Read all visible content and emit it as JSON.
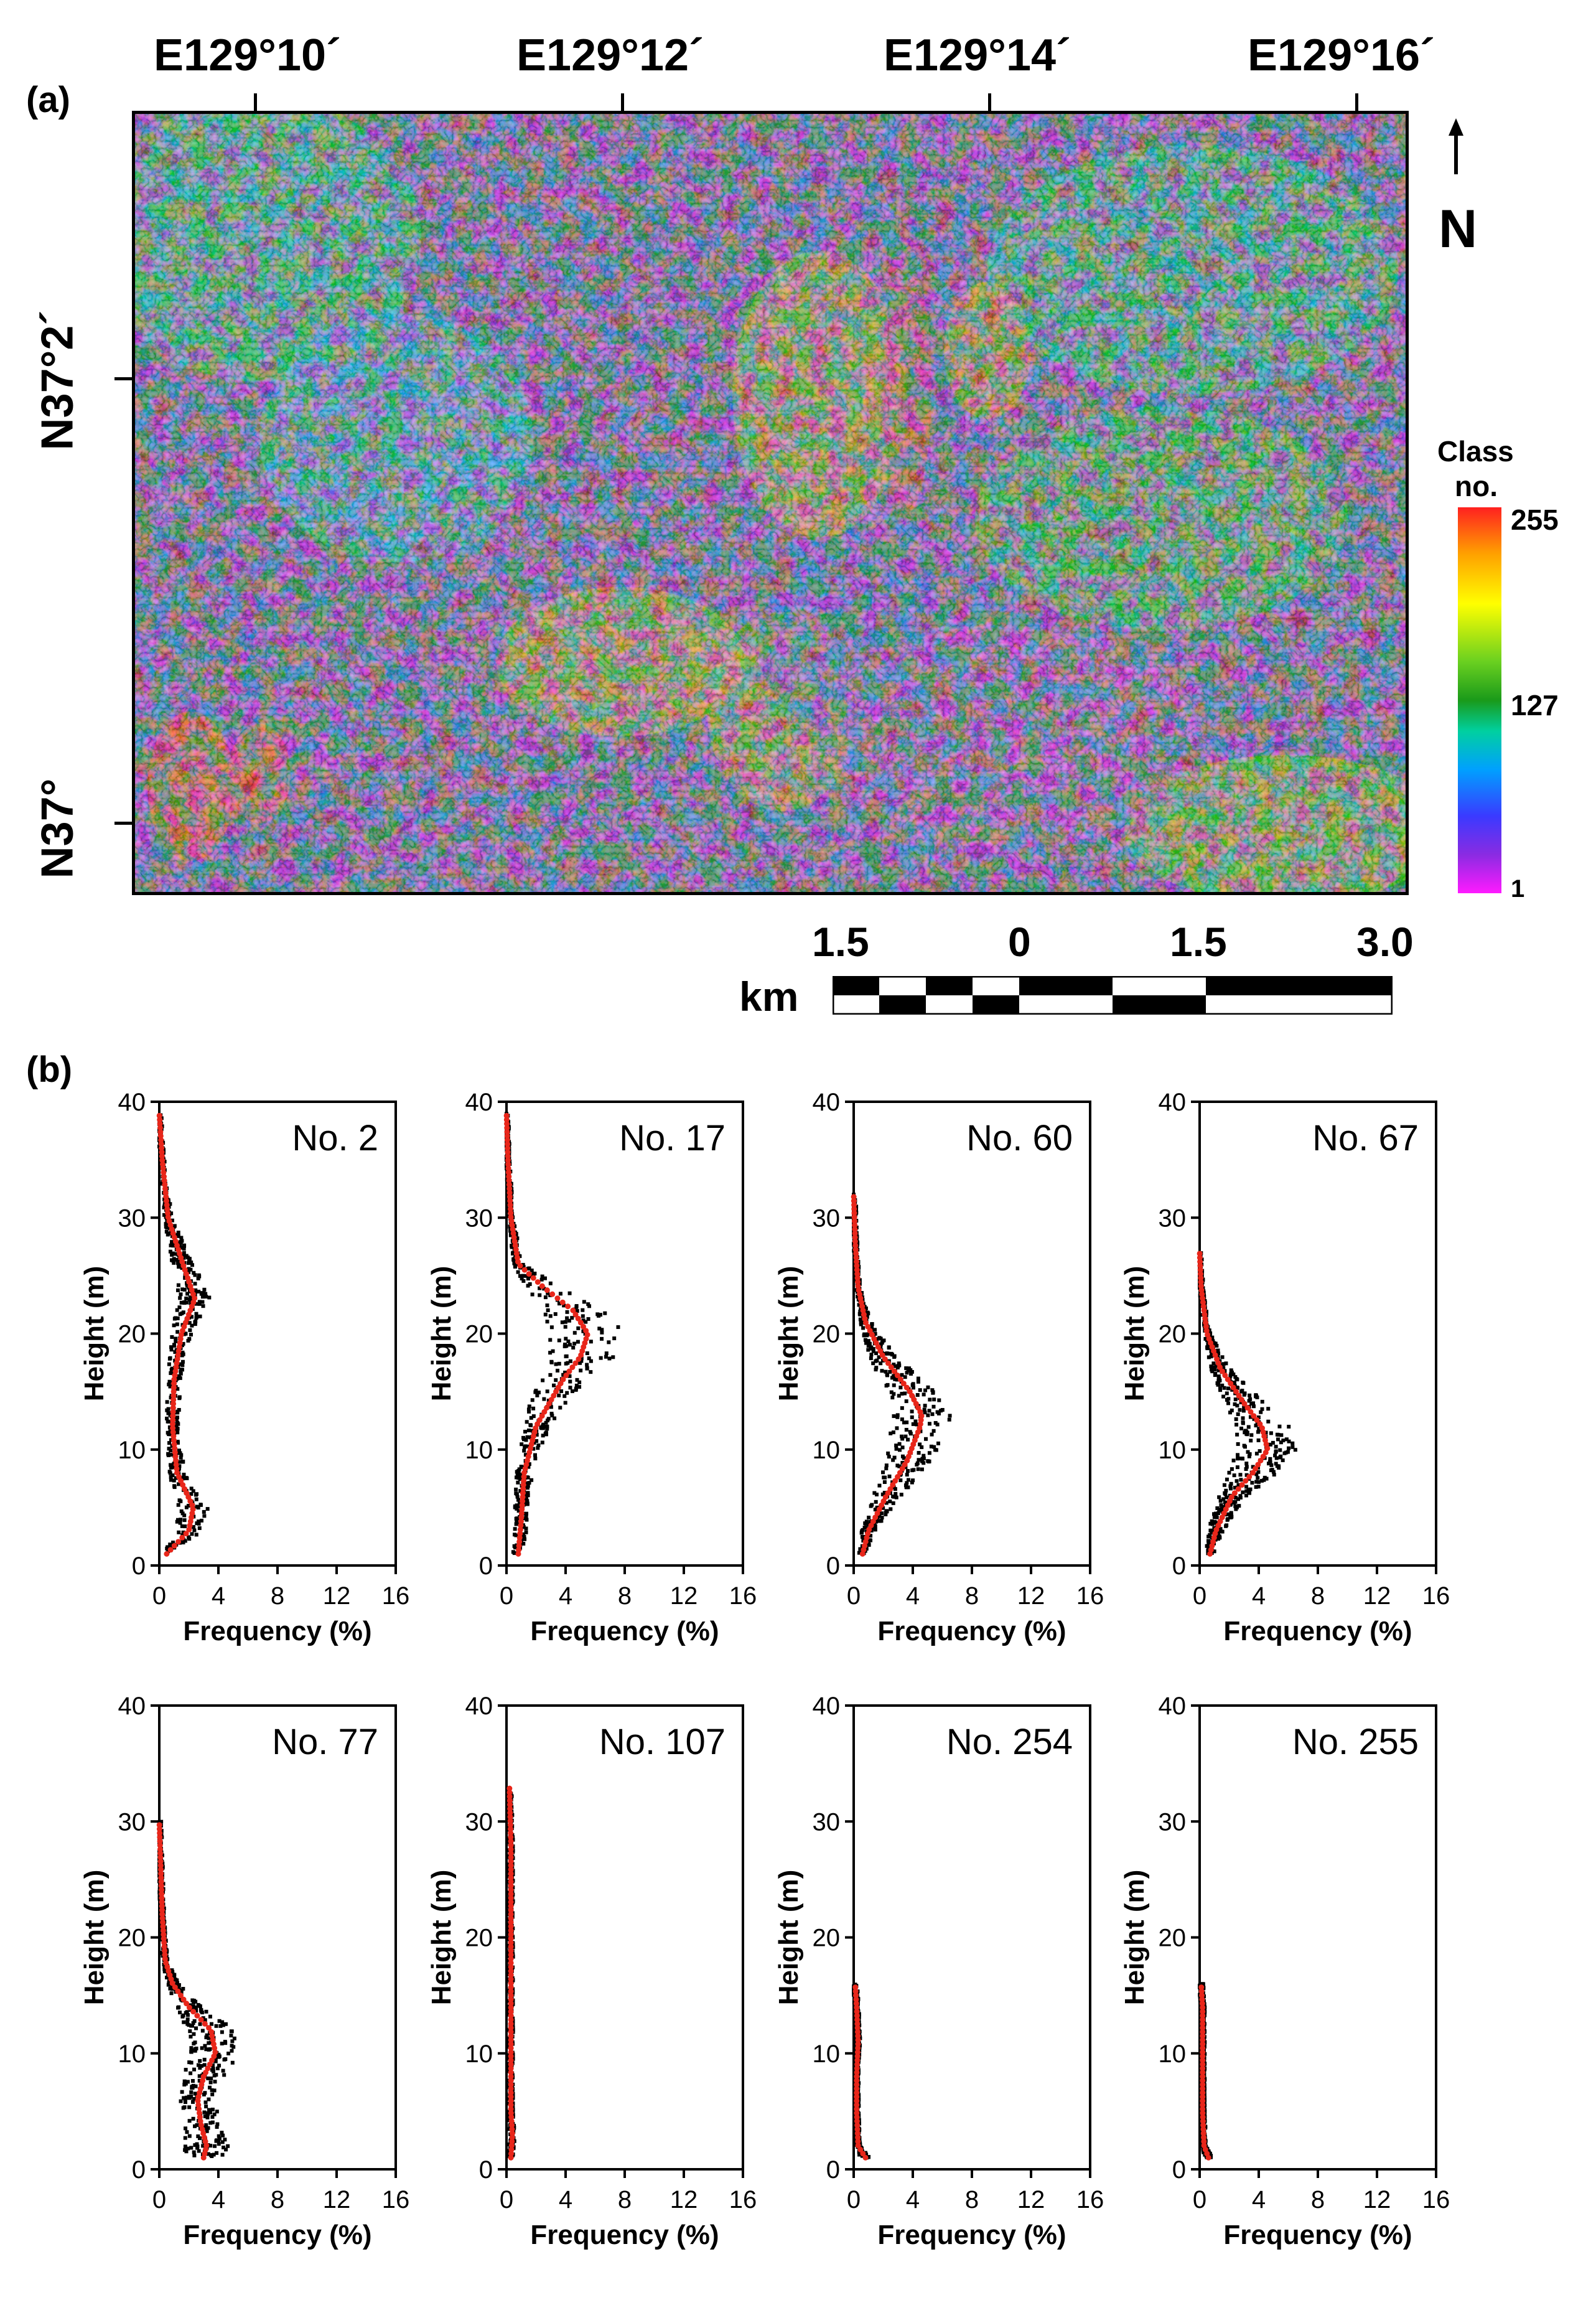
{
  "panel_a": {
    "label": "(a)",
    "lon_labels": [
      "E129°10´",
      "E129°12´",
      "E129°14´",
      "E129°16´"
    ],
    "lat_labels": [
      "N37°2´",
      "N37°"
    ],
    "north_label": "N",
    "colorbar": {
      "title": "Class",
      "subtitle": "no.",
      "ticks": [
        "255",
        "127",
        "1"
      ]
    },
    "scalebar": {
      "unit": "km",
      "ticks": [
        "1.5",
        "0",
        "1.5",
        "3.0"
      ]
    }
  },
  "panel_b": {
    "label": "(b)"
  },
  "chart_data": [
    {
      "type": "scatter",
      "title": "No. 2",
      "xlabel": "Frequency (%)",
      "ylabel": "Height (m)",
      "xlim": [
        0,
        16
      ],
      "ylim": [
        0,
        40
      ],
      "xticks": [
        "0",
        "4",
        "8",
        "12",
        "16"
      ],
      "yticks": [
        "0",
        "10",
        "20",
        "30",
        "40"
      ],
      "curve": {
        "y": [
          1,
          3,
          5,
          8,
          12,
          16,
          20,
          23,
          26,
          30,
          35,
          39
        ],
        "x": [
          0.5,
          2.0,
          2.3,
          1.2,
          0.9,
          1.0,
          1.5,
          2.4,
          1.6,
          0.6,
          0.2,
          0.0
        ]
      }
    },
    {
      "type": "scatter",
      "title": "No. 17",
      "xlabel": "Frequency (%)",
      "ylabel": "Height (m)",
      "xlim": [
        0,
        16
      ],
      "ylim": [
        0,
        40
      ],
      "xticks": [
        "0",
        "4",
        "8",
        "12",
        "16"
      ],
      "yticks": [
        "0",
        "10",
        "20",
        "30",
        "40"
      ],
      "curve": {
        "y": [
          1,
          4,
          8,
          12,
          16,
          18,
          20,
          22,
          24,
          26,
          30,
          35,
          39
        ],
        "x": [
          0.8,
          1.0,
          1.2,
          2.0,
          3.8,
          5.0,
          5.5,
          4.5,
          2.5,
          0.8,
          0.3,
          0.1,
          0.0
        ]
      }
    },
    {
      "type": "scatter",
      "title": "No. 60",
      "xlabel": "Frequency (%)",
      "ylabel": "Height (m)",
      "xlim": [
        0,
        16
      ],
      "ylim": [
        0,
        40
      ],
      "xticks": [
        "0",
        "4",
        "8",
        "12",
        "16"
      ],
      "yticks": [
        "0",
        "10",
        "20",
        "30",
        "40"
      ],
      "curve": {
        "y": [
          1,
          3,
          6,
          9,
          12,
          13,
          15,
          18,
          21,
          24,
          28,
          32
        ],
        "x": [
          0.6,
          1.0,
          2.2,
          3.6,
          4.5,
          4.6,
          3.8,
          2.0,
          0.8,
          0.3,
          0.1,
          0.0
        ]
      }
    },
    {
      "type": "scatter",
      "title": "No. 67",
      "xlabel": "Frequency (%)",
      "ylabel": "Height (m)",
      "xlim": [
        0,
        16
      ],
      "ylim": [
        0,
        40
      ],
      "xticks": [
        "0",
        "4",
        "8",
        "12",
        "16"
      ],
      "yticks": [
        "0",
        "10",
        "20",
        "30",
        "40"
      ],
      "curve": {
        "y": [
          1,
          3,
          6,
          8,
          10,
          12,
          14,
          17,
          20,
          24,
          27
        ],
        "x": [
          0.7,
          1.1,
          2.2,
          3.6,
          4.6,
          4.2,
          3.0,
          1.4,
          0.5,
          0.1,
          0.0
        ]
      }
    },
    {
      "type": "scatter",
      "title": "No. 77",
      "xlabel": "Frequency (%)",
      "ylabel": "Height (m)",
      "xlim": [
        0,
        16
      ],
      "ylim": [
        0,
        40
      ],
      "xticks": [
        "0",
        "4",
        "8",
        "12",
        "16"
      ],
      "yticks": [
        "0",
        "10",
        "20",
        "30",
        "40"
      ],
      "curve": {
        "y": [
          1,
          2,
          4,
          6,
          8,
          10,
          12,
          14,
          16,
          18,
          22,
          26,
          30
        ],
        "x": [
          3.0,
          3.2,
          2.8,
          2.6,
          3.0,
          3.8,
          3.5,
          2.0,
          0.9,
          0.4,
          0.2,
          0.1,
          0.0
        ]
      }
    },
    {
      "type": "scatter",
      "title": "No. 107",
      "xlabel": "Frequency (%)",
      "ylabel": "Height (m)",
      "xlim": [
        0,
        16
      ],
      "ylim": [
        0,
        40
      ],
      "xticks": [
        "0",
        "4",
        "8",
        "12",
        "16"
      ],
      "yticks": [
        "0",
        "10",
        "20",
        "30",
        "40"
      ],
      "curve": {
        "y": [
          1,
          3,
          5,
          8,
          12,
          16,
          20,
          24,
          28,
          33
        ],
        "x": [
          0.3,
          0.4,
          0.3,
          0.3,
          0.3,
          0.3,
          0.3,
          0.3,
          0.3,
          0.2
        ]
      }
    },
    {
      "type": "scatter",
      "title": "No. 254",
      "xlabel": "Frequency (%)",
      "ylabel": "Height (m)",
      "xlim": [
        0,
        16
      ],
      "ylim": [
        0,
        40
      ],
      "xticks": [
        "0",
        "4",
        "8",
        "12",
        "16"
      ],
      "yticks": [
        "0",
        "10",
        "20",
        "30",
        "40"
      ],
      "curve": {
        "y": [
          1,
          2,
          5,
          8,
          11,
          14,
          16
        ],
        "x": [
          0.8,
          0.3,
          0.2,
          0.2,
          0.3,
          0.2,
          0.1
        ]
      }
    },
    {
      "type": "scatter",
      "title": "No. 255",
      "xlabel": "Frequency (%)",
      "ylabel": "Height (m)",
      "xlim": [
        0,
        16
      ],
      "ylim": [
        0,
        40
      ],
      "xticks": [
        "0",
        "4",
        "8",
        "12",
        "16"
      ],
      "yticks": [
        "0",
        "10",
        "20",
        "30",
        "40"
      ],
      "curve": {
        "y": [
          1,
          2,
          5,
          8,
          11,
          14,
          16
        ],
        "x": [
          0.6,
          0.3,
          0.2,
          0.2,
          0.2,
          0.2,
          0.1
        ]
      }
    }
  ]
}
